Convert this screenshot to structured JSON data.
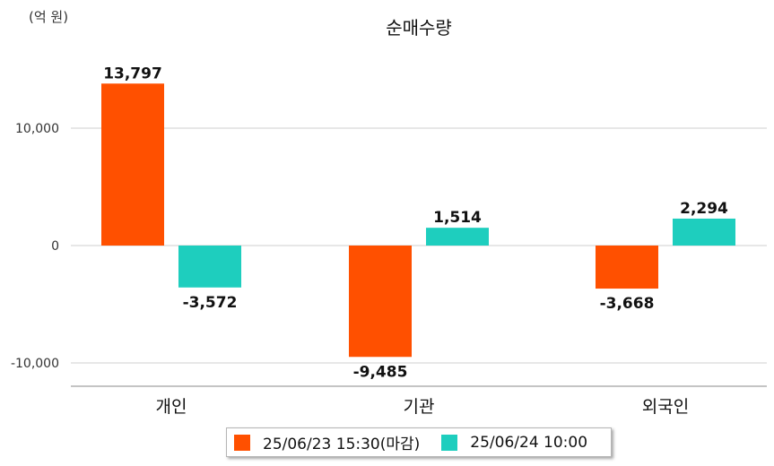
{
  "chart_data": {
    "type": "bar",
    "title": "순매수량",
    "unit_label": "(억 원)",
    "categories": [
      "개인",
      "기관",
      "외국인"
    ],
    "series": [
      {
        "name": "25/06/23 15:30(마감)",
        "color": "#ff5000",
        "values": [
          13797,
          -9485,
          -3668
        ]
      },
      {
        "name": "25/06/24 10:00",
        "color": "#1ecebe",
        "values": [
          -3572,
          1514,
          2294
        ]
      }
    ],
    "value_labels": [
      [
        "13,797",
        "-9,485",
        "-3,668"
      ],
      [
        "-3,572",
        "1,514",
        "2,294"
      ]
    ],
    "y_ticks": [
      10000,
      0,
      -10000
    ],
    "y_tick_labels": [
      "10,000",
      "0",
      "-10,000"
    ],
    "ylim": [
      -12000,
      15000
    ],
    "grid": true,
    "legend_position": "bottom"
  }
}
